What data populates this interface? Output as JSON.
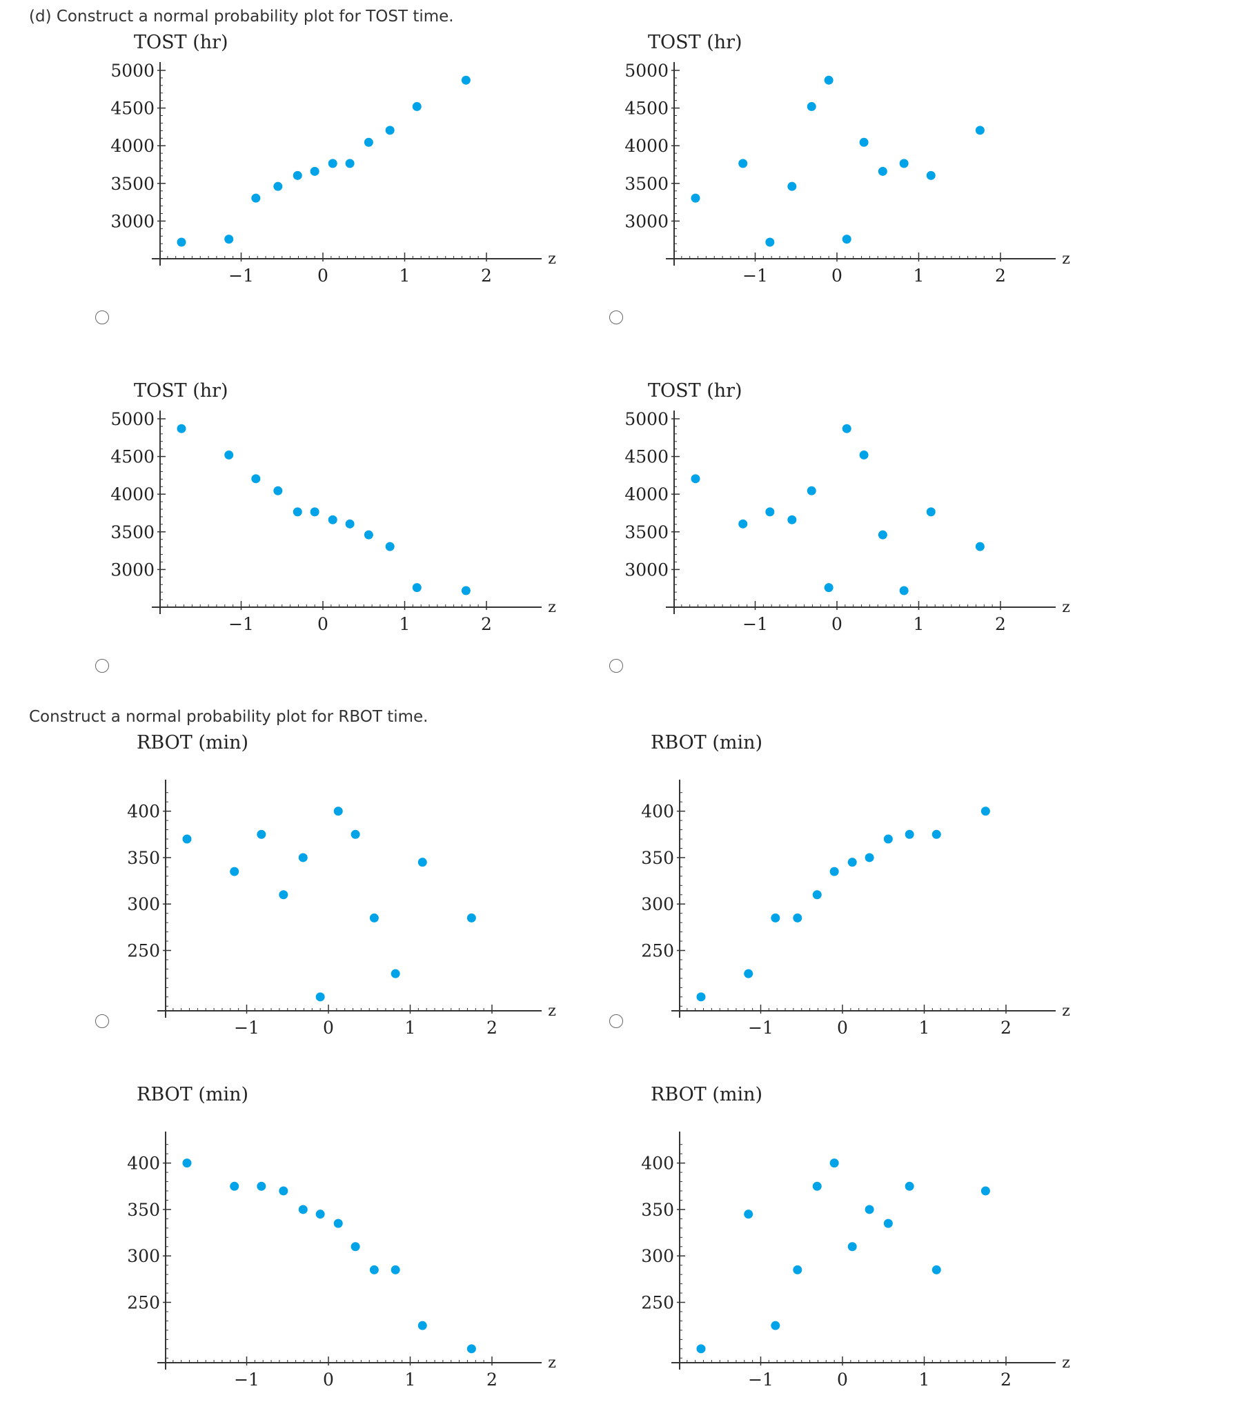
{
  "questions": {
    "tost": "(d) Construct a normal probability plot for TOST time.",
    "rbot": "Construct a normal probability plot for RBOT time."
  },
  "colors": {
    "point": "#00a2e8",
    "axis": "#333333"
  },
  "chart_data": [
    {
      "type": "scatter",
      "title": "TOST (hr)",
      "xlabel": "z",
      "xlim": [
        -2.05,
        2.05
      ],
      "ylim": [
        2500,
        5000
      ],
      "xticks": [
        -1,
        0,
        1,
        2
      ],
      "yticks": [
        3000,
        3500,
        4000,
        4500,
        5000
      ],
      "points": [
        [
          -1.73,
          2720
        ],
        [
          -1.15,
          2760
        ],
        [
          -0.82,
          3305
        ],
        [
          -0.55,
          3460
        ],
        [
          -0.31,
          3605
        ],
        [
          -0.1,
          3660
        ],
        [
          0.12,
          3765
        ],
        [
          0.33,
          3765
        ],
        [
          0.56,
          4045
        ],
        [
          0.82,
          4205
        ],
        [
          1.15,
          4520
        ],
        [
          1.75,
          4870
        ]
      ]
    },
    {
      "type": "scatter",
      "title": "TOST (hr)",
      "xlabel": "z",
      "xlim": [
        -2.05,
        2.05
      ],
      "ylim": [
        2500,
        5000
      ],
      "xticks": [
        -1,
        0,
        1,
        2
      ],
      "yticks": [
        3000,
        3500,
        4000,
        4500,
        5000
      ],
      "points": [
        [
          -1.73,
          3305
        ],
        [
          -1.15,
          3765
        ],
        [
          -0.82,
          2720
        ],
        [
          -0.55,
          3460
        ],
        [
          -0.31,
          4520
        ],
        [
          -0.1,
          4870
        ],
        [
          0.12,
          2760
        ],
        [
          0.33,
          4045
        ],
        [
          0.56,
          3660
        ],
        [
          0.82,
          3765
        ],
        [
          1.15,
          3605
        ],
        [
          1.75,
          4205
        ]
      ]
    },
    {
      "type": "scatter",
      "title": "TOST (hr)",
      "xlabel": "z",
      "xlim": [
        -2.05,
        2.05
      ],
      "ylim": [
        2500,
        5000
      ],
      "xticks": [
        -1,
        0,
        1,
        2
      ],
      "yticks": [
        3000,
        3500,
        4000,
        4500,
        5000
      ],
      "points": [
        [
          -1.73,
          4870
        ],
        [
          -1.15,
          4520
        ],
        [
          -0.82,
          4205
        ],
        [
          -0.55,
          4045
        ],
        [
          -0.31,
          3765
        ],
        [
          -0.1,
          3765
        ],
        [
          0.12,
          3660
        ],
        [
          0.33,
          3605
        ],
        [
          0.56,
          3460
        ],
        [
          0.82,
          3305
        ],
        [
          1.15,
          2760
        ],
        [
          1.75,
          2720
        ]
      ]
    },
    {
      "type": "scatter",
      "title": "TOST (hr)",
      "xlabel": "z",
      "xlim": [
        -2.05,
        2.05
      ],
      "ylim": [
        2500,
        5000
      ],
      "xticks": [
        -1,
        0,
        1,
        2
      ],
      "yticks": [
        3000,
        3500,
        4000,
        4500,
        5000
      ],
      "points": [
        [
          -1.73,
          4205
        ],
        [
          -1.15,
          3605
        ],
        [
          -0.82,
          3765
        ],
        [
          -0.55,
          3660
        ],
        [
          -0.31,
          4045
        ],
        [
          -0.1,
          2760
        ],
        [
          0.12,
          4870
        ],
        [
          0.33,
          4520
        ],
        [
          0.56,
          3460
        ],
        [
          0.82,
          2720
        ],
        [
          1.15,
          3765
        ],
        [
          1.75,
          3305
        ]
      ]
    },
    {
      "type": "scatter",
      "title": "RBOT (min)",
      "xlabel": "z",
      "xlim": [
        -2.05,
        2.05
      ],
      "ylim": [
        185,
        430
      ],
      "xticks": [
        -1,
        0,
        1,
        2
      ],
      "yticks": [
        250,
        300,
        350,
        400
      ],
      "points": [
        [
          -1.73,
          370
        ],
        [
          -1.15,
          335
        ],
        [
          -0.82,
          375
        ],
        [
          -0.55,
          310
        ],
        [
          -0.31,
          350
        ],
        [
          -0.1,
          200
        ],
        [
          0.12,
          400
        ],
        [
          0.33,
          375
        ],
        [
          0.56,
          285
        ],
        [
          0.82,
          225
        ],
        [
          1.15,
          345
        ],
        [
          1.75,
          285
        ]
      ]
    },
    {
      "type": "scatter",
      "title": "RBOT (min)",
      "xlabel": "z",
      "xlim": [
        -2.05,
        2.05
      ],
      "ylim": [
        185,
        430
      ],
      "xticks": [
        -1,
        0,
        1,
        2
      ],
      "yticks": [
        250,
        300,
        350,
        400
      ],
      "points": [
        [
          -1.73,
          200
        ],
        [
          -1.15,
          225
        ],
        [
          -0.82,
          285
        ],
        [
          -0.55,
          285
        ],
        [
          -0.31,
          310
        ],
        [
          -0.1,
          335
        ],
        [
          0.12,
          345
        ],
        [
          0.33,
          350
        ],
        [
          0.56,
          370
        ],
        [
          0.82,
          375
        ],
        [
          1.15,
          375
        ],
        [
          1.75,
          400
        ]
      ]
    },
    {
      "type": "scatter",
      "title": "RBOT (min)",
      "xlabel": "z",
      "xlim": [
        -2.05,
        2.05
      ],
      "ylim": [
        185,
        430
      ],
      "xticks": [
        -1,
        0,
        1,
        2
      ],
      "yticks": [
        250,
        300,
        350,
        400
      ],
      "points": [
        [
          -1.73,
          400
        ],
        [
          -1.15,
          375
        ],
        [
          -0.82,
          375
        ],
        [
          -0.55,
          370
        ],
        [
          -0.31,
          350
        ],
        [
          -0.1,
          345
        ],
        [
          0.12,
          335
        ],
        [
          0.33,
          310
        ],
        [
          0.56,
          285
        ],
        [
          0.82,
          285
        ],
        [
          1.15,
          225
        ],
        [
          1.75,
          200
        ]
      ]
    },
    {
      "type": "scatter",
      "title": "RBOT (min)",
      "xlabel": "z",
      "xlim": [
        -2.05,
        2.05
      ],
      "ylim": [
        185,
        430
      ],
      "xticks": [
        -1,
        0,
        1,
        2
      ],
      "yticks": [
        250,
        300,
        350,
        400
      ],
      "points": [
        [
          -1.73,
          200
        ],
        [
          -1.15,
          345
        ],
        [
          -0.82,
          225
        ],
        [
          -0.55,
          285
        ],
        [
          -0.31,
          375
        ],
        [
          -0.1,
          400
        ],
        [
          0.12,
          310
        ],
        [
          0.33,
          350
        ],
        [
          0.56,
          335
        ],
        [
          0.82,
          375
        ],
        [
          1.15,
          285
        ],
        [
          1.75,
          370
        ]
      ]
    }
  ]
}
